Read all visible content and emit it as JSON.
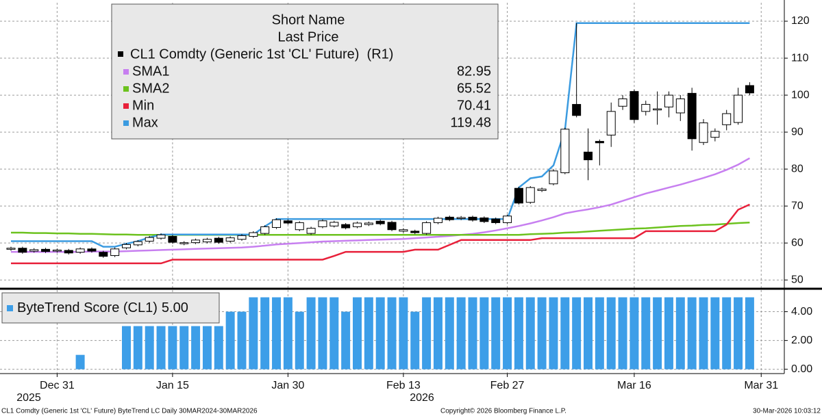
{
  "chart_data": [
    {
      "type": "candlestick",
      "ylim": [
        48,
        125
      ],
      "yticks": [
        50,
        60,
        70,
        80,
        90,
        100,
        110,
        120
      ],
      "grid": true,
      "legend_title": [
        "Short Name",
        "Last Price"
      ],
      "candles": {
        "name": "CL1 Comdty (Generic 1st 'CL' Future)  (R1)",
        "color_up": "#ffffff",
        "color_down": "#000000",
        "open": [
          58.3,
          58.6,
          57.8,
          58.3,
          57.8,
          58.0,
          57.5,
          58.4,
          57.5,
          56.6,
          58.7,
          59.5,
          60.5,
          61.3,
          61.8,
          59.8,
          60.1,
          60.3,
          61.3,
          60.5,
          61.0,
          61.8,
          62.6,
          64.2,
          66.0,
          63.6,
          62.6,
          64.4,
          64.6,
          65.0,
          64.4,
          65.0,
          65.9,
          65.6,
          63.2,
          63.2,
          62.6,
          65.5,
          67.0,
          66.6,
          67.0,
          66.8,
          66.5,
          65.5,
          74.8,
          71.0,
          74.2,
          76.0,
          79.0,
          97.5,
          84.6,
          87.5,
          89.2,
          97.0,
          101.0,
          95.6,
          96.0,
          96.8,
          95.2,
          100.5,
          87.2,
          88.6,
          92.0,
          92.6,
          102.6,
          null
        ],
        "high": [
          59.0,
          59.0,
          58.6,
          58.7,
          58.5,
          58.4,
          58.8,
          58.8,
          57.9,
          58.8,
          60.0,
          60.8,
          61.9,
          62.6,
          62.2,
          60.5,
          61.2,
          61.4,
          61.7,
          61.8,
          62.4,
          63.2,
          64.8,
          66.7,
          66.4,
          65.9,
          64.4,
          66.4,
          66.0,
          65.4,
          65.8,
          65.8,
          66.3,
          66.0,
          64.0,
          63.6,
          65.9,
          67.1,
          67.4,
          67.3,
          67.4,
          67.2,
          66.9,
          67.7,
          75.2,
          75.4,
          75.0,
          80.0,
          91.2,
          119.5,
          91,
          88,
          98,
          100,
          101.5,
          98.5,
          101,
          101,
          100,
          102,
          93.5,
          91,
          96,
          102,
          103.5,
          null
        ],
        "low": [
          57.9,
          57.1,
          57.4,
          57.3,
          57.4,
          56.9,
          57.1,
          57.4,
          56.0,
          56.2,
          58.3,
          59.1,
          60.1,
          60.9,
          59.8,
          59.4,
          59.7,
          59.9,
          59.8,
          60.1,
          60.6,
          61.4,
          62.2,
          63.8,
          65.0,
          63.2,
          62.2,
          64.0,
          64.2,
          63.7,
          64.0,
          64.6,
          64.8,
          63.2,
          62.8,
          62.4,
          62.2,
          65.1,
          65.9,
          66.2,
          65.8,
          65.4,
          65.1,
          65.1,
          70.4,
          70.6,
          73.8,
          75.6,
          78.6,
          94,
          77,
          81,
          86,
          96,
          92.5,
          94.5,
          92,
          94,
          93,
          85,
          86.5,
          87.5,
          90.5,
          92,
          100,
          null
        ],
        "close": [
          58.6,
          57.5,
          58.2,
          57.7,
          58.1,
          57.3,
          58.4,
          57.8,
          56.4,
          58.4,
          59.6,
          60.4,
          61.5,
          62.2,
          60.2,
          60.1,
          60.8,
          61.0,
          60.2,
          61.4,
          62.0,
          62.8,
          64.4,
          66.3,
          65.4,
          65.5,
          64.0,
          66.0,
          65.6,
          64.1,
          65.4,
          65.4,
          65.2,
          63.6,
          63.6,
          62.8,
          65.5,
          66.7,
          66.3,
          66.9,
          66.2,
          65.8,
          65.5,
          67.3,
          70.8,
          75.0,
          74.6,
          79.5,
          90.8,
          94.5,
          82.5,
          87.1,
          95.6,
          99.0,
          93.4,
          97.5,
          96.3,
          100.0,
          99.0,
          88.2,
          92.5,
          90.2,
          95.0,
          100.0,
          100.6,
          null
        ]
      },
      "series": [
        {
          "name": "SMA1",
          "color": "#c77ff0",
          "values": [
            57.6,
            57.6,
            57.6,
            57.6,
            57.6,
            57.6,
            57.6,
            57.7,
            57.7,
            57.7,
            57.8,
            57.9,
            58.0,
            58.1,
            58.2,
            58.3,
            58.4,
            58.5,
            58.6,
            58.7,
            58.8,
            59.0,
            59.3,
            59.6,
            59.8,
            60.0,
            60.2,
            60.4,
            60.5,
            60.6,
            60.7,
            60.8,
            60.9,
            61.0,
            61.1,
            61.3,
            61.5,
            61.7,
            61.9,
            62.2,
            62.5,
            62.9,
            63.4,
            64.0,
            64.6,
            65.3,
            66.1,
            67.0,
            68.0,
            68.6,
            69.1,
            69.7,
            70.4,
            71.4,
            72.4,
            73.4,
            74.2,
            75.0,
            75.8,
            76.7,
            77.6,
            78.6,
            79.8,
            81.2,
            82.95,
            null
          ]
        },
        {
          "name": "SMA2",
          "color": "#6cc21e",
          "values": [
            62.8,
            62.8,
            62.7,
            62.7,
            62.6,
            62.6,
            62.5,
            62.5,
            62.4,
            62.3,
            62.3,
            62.2,
            62.2,
            62.2,
            62.2,
            62.2,
            62.2,
            62.2,
            62.2,
            62.2,
            62.2,
            62.2,
            62.2,
            62.2,
            62.2,
            62.2,
            62.2,
            62.2,
            62.2,
            62.2,
            62.2,
            62.2,
            62.2,
            62.2,
            62.2,
            62.2,
            62.2,
            62.2,
            62.2,
            62.2,
            62.2,
            62.2,
            62.2,
            62.2,
            62.2,
            62.4,
            62.5,
            62.6,
            62.8,
            62.9,
            63.1,
            63.3,
            63.5,
            63.7,
            63.9,
            64.0,
            64.2,
            64.4,
            64.6,
            64.7,
            64.9,
            65.0,
            65.2,
            65.4,
            65.52,
            null
          ]
        },
        {
          "name": "Min",
          "color": "#e8203a",
          "values": [
            54.5,
            54.5,
            54.5,
            54.5,
            54.5,
            54.5,
            54.5,
            54.5,
            54.5,
            54.5,
            54.5,
            54.5,
            54.5,
            54.5,
            55.5,
            55.5,
            55.5,
            55.5,
            55.5,
            55.5,
            55.5,
            55.5,
            55.5,
            55.5,
            55.5,
            55.5,
            55.5,
            55.5,
            56.5,
            57.6,
            57.6,
            57.6,
            57.6,
            57.6,
            57.6,
            58.2,
            58.2,
            58.2,
            59.5,
            60.8,
            60.8,
            60.8,
            60.8,
            60.8,
            60.8,
            60.8,
            61.3,
            61.3,
            61.3,
            61.3,
            61.3,
            61.3,
            61.3,
            61.3,
            61.3,
            63.2,
            63.2,
            63.2,
            63.2,
            63.2,
            63.2,
            63.2,
            65,
            69,
            70.41,
            null
          ]
        },
        {
          "name": "Max",
          "color": "#3b9be0",
          "values": [
            60.5,
            60.5,
            60.5,
            60.5,
            60.5,
            60.5,
            60.5,
            60.5,
            59.0,
            59.0,
            59.8,
            60.5,
            61.5,
            62.3,
            62.3,
            62.3,
            62.3,
            62.3,
            62.3,
            62.3,
            62.3,
            62.3,
            64.5,
            66.5,
            66.5,
            66.5,
            66.5,
            66.5,
            66.5,
            66.5,
            66.5,
            66.5,
            66.5,
            66.5,
            66.5,
            66.5,
            66.5,
            66.5,
            66.5,
            66.5,
            66.5,
            66.5,
            66.5,
            66.5,
            75,
            77.5,
            78,
            81,
            90.6,
            119.48,
            119.48,
            119.48,
            119.48,
            119.48,
            119.48,
            119.48,
            119.48,
            119.48,
            119.48,
            119.48,
            119.48,
            119.48,
            119.48,
            119.48,
            119.48,
            null
          ]
        }
      ]
    },
    {
      "type": "bar",
      "ylim": [
        -0.3,
        5.5
      ],
      "yticks": [
        {
          "value": 0,
          "label": "0.00"
        },
        {
          "value": 2,
          "label": "2.00"
        },
        {
          "value": 4,
          "label": "4.00"
        }
      ],
      "grid": true,
      "categories": [
        null,
        null,
        null,
        null,
        "Dec 31",
        null,
        null,
        null,
        null,
        null,
        null,
        null,
        null,
        null,
        "Jan 15",
        null,
        null,
        null,
        null,
        null,
        null,
        null,
        null,
        null,
        "Jan 30",
        null,
        null,
        null,
        null,
        null,
        null,
        null,
        null,
        null,
        "Feb 13",
        null,
        null,
        null,
        null,
        null,
        null,
        null,
        null,
        "Feb 27",
        null,
        null,
        null,
        null,
        null,
        null,
        null,
        null,
        null,
        null,
        "Mar 16",
        null,
        null,
        null,
        null,
        null,
        null,
        null,
        null,
        null,
        null,
        "Mar 31"
      ],
      "year_labels": [
        "2025",
        "2026"
      ],
      "series": [
        {
          "name": "ByteTrend Score (CL1)",
          "color": "#3d9ee8",
          "last_value_label": "5.00",
          "values": [
            0,
            0,
            0,
            0,
            0,
            0,
            1,
            0,
            0,
            0,
            3,
            3,
            3,
            3,
            3,
            3,
            3,
            3,
            3,
            4,
            4,
            5,
            5,
            5,
            5,
            4,
            5,
            5,
            5,
            4,
            5,
            5,
            5,
            5,
            5,
            4,
            5,
            5,
            5,
            5,
            5,
            5,
            5,
            5,
            5,
            5,
            5,
            5,
            5,
            5,
            5,
            5,
            5,
            5,
            5,
            5,
            5,
            5,
            5,
            5,
            5,
            5,
            5,
            5,
            5,
            null
          ]
        }
      ]
    }
  ],
  "footer": {
    "left": "CL1 Comdty (Generic 1st 'CL' Future) ByteTrend LC Daily 30MAR2024-30MAR2026",
    "center": "Copyright© 2026 Bloomberg Finance L.P.",
    "right": "30-Mar-2026 10:03:12"
  }
}
